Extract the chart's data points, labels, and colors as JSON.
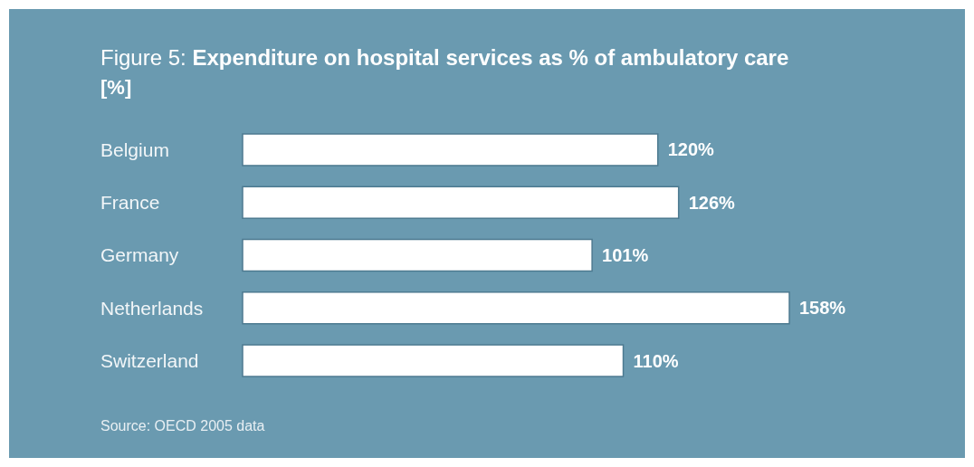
{
  "chart_data": {
    "type": "bar",
    "orientation": "horizontal",
    "title": "Figure 5: Expenditure on hospital services as % of ambulatory care",
    "subtitle": "[%]",
    "categories": [
      "Belgium",
      "France",
      "Germany",
      "Netherlands",
      "Switzerland"
    ],
    "values": [
      120,
      126,
      101,
      158,
      110
    ],
    "value_labels": [
      "120%",
      "126%",
      "101%",
      "158%",
      "110%"
    ],
    "color": "#ffffff",
    "annotations": [
      "Source: OECD 2005 data"
    ]
  }
}
